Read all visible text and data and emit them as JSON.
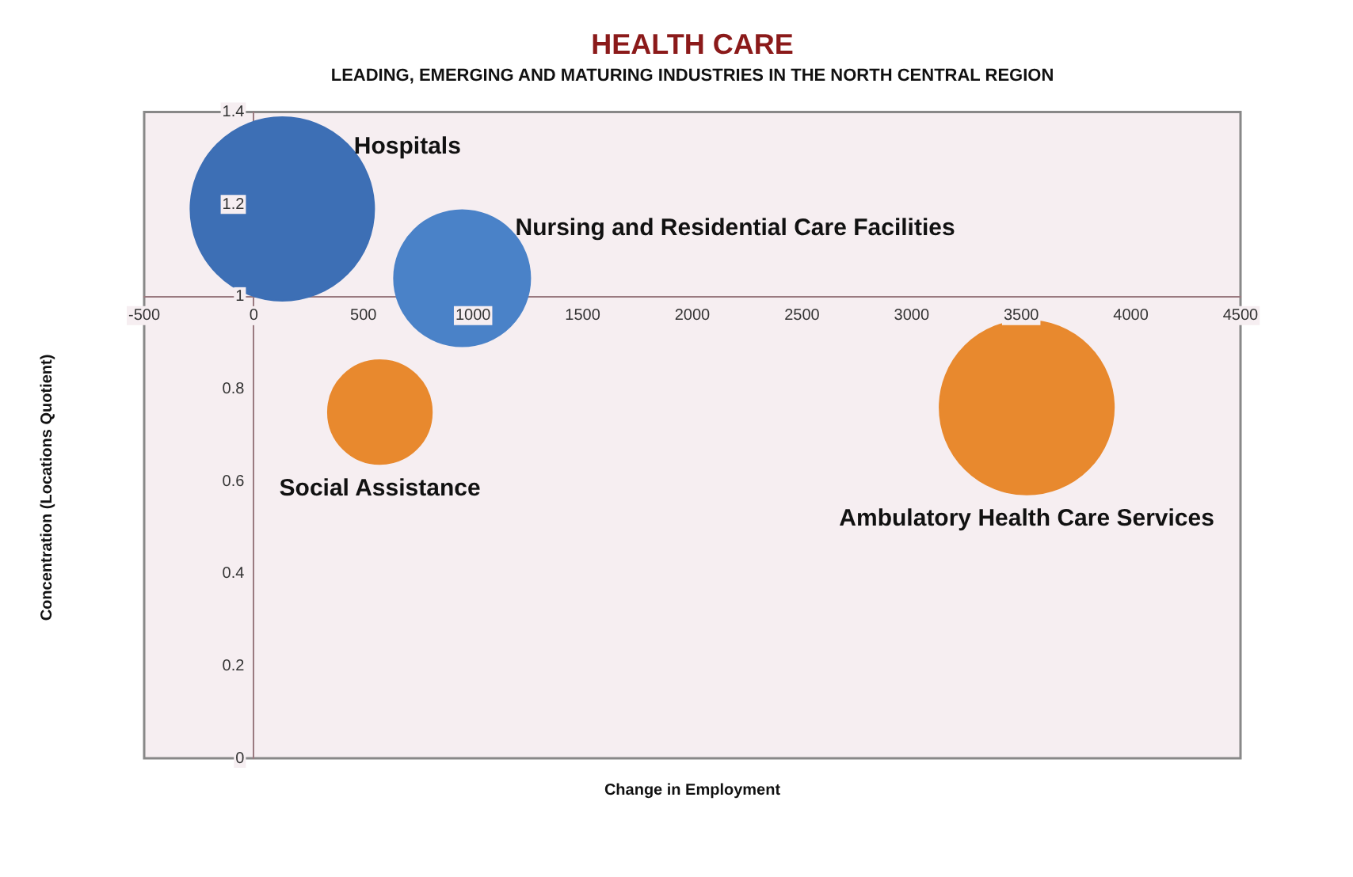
{
  "chart_data": {
    "type": "bubble",
    "title": "HEALTH CARE",
    "subtitle": "LEADING, EMERGING AND MATURING INDUSTRIES IN THE NORTH CENTRAL REGION",
    "xlabel": "Change in Employment",
    "ylabel": "Concentration (Locations Quotient)",
    "series": [
      {
        "name": "Hospitals",
        "color": "#3d6fb5",
        "x": [
          130
        ],
        "values": [
          1.19
        ],
        "sizes": [
          1
        ]
      },
      {
        "name": "Nursing and Residential Care Facilities",
        "color": "#4a82c8",
        "x": [
          950
        ],
        "values": [
          1.04
        ],
        "sizes": [
          0.55
        ]
      },
      {
        "name": "Social Assistance",
        "color": "#e8892e",
        "x": [
          575
        ],
        "values": [
          0.75
        ],
        "sizes": [
          0.32
        ]
      },
      {
        "name": "Ambulatory Health Care Services",
        "color": "#e8892e",
        "x": [
          3525
        ],
        "values": [
          0.76
        ],
        "sizes": [
          0.9
        ]
      }
    ],
    "xlim": [
      -500,
      4500
    ],
    "xticks": [
      -500,
      0,
      500,
      1000,
      1500,
      2000,
      2500,
      3000,
      3500,
      4000,
      4500
    ],
    "ylim": [
      0,
      1.4
    ],
    "yticks": [
      0,
      0.2,
      0.4,
      0.6,
      0.8,
      1,
      1.2,
      1.4
    ],
    "grid": false,
    "legend": false
  }
}
